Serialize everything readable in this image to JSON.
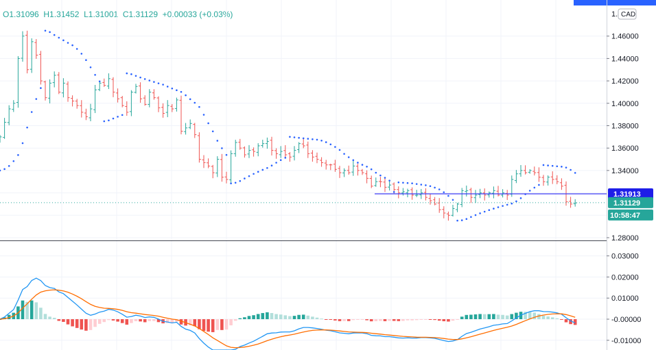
{
  "header": {
    "open": "O1.31096",
    "high": "H1.31452",
    "low": "L1.31001",
    "close": "C1.31129",
    "change": "+0.00033 (+0.03%)"
  },
  "currency_badge": "CAD",
  "colors": {
    "up": "#26a69a",
    "down": "#ef5350",
    "sar": "#2962ff",
    "hline": "#3d3df5",
    "macd": "#2196f3",
    "signal": "#ff6d00",
    "hist_up_strong": "#26a69a",
    "hist_up_weak": "#b2dfdb",
    "hist_down_strong": "#ef5350",
    "hist_down_weak": "#ffcdd2",
    "grid": "#f0f3fa",
    "axis_text": "#131722"
  },
  "chart_data": [
    {
      "type": "candlestick",
      "panel": "price",
      "y_ticks": [
        "1.46000",
        "1.44000",
        "1.42000",
        "1.40000",
        "1.38000",
        "1.36000",
        "1.34000",
        "1.28000"
      ],
      "ylim": [
        1.28,
        1.48
      ],
      "horizontal_line": {
        "value": 1.31913,
        "label": "1.31913"
      },
      "last_price": {
        "value": 1.31129,
        "label": "1.31129"
      },
      "countdown": "10:58:47",
      "close": [
        1.37,
        1.383,
        1.395,
        1.4,
        1.44,
        1.46,
        1.43,
        1.455,
        1.443,
        1.42,
        1.405,
        1.418,
        1.425,
        1.41,
        1.418,
        1.405,
        1.402,
        1.398,
        1.392,
        1.388,
        1.395,
        1.412,
        1.418,
        1.416,
        1.422,
        1.41,
        1.404,
        1.398,
        1.392,
        1.41,
        1.415,
        1.404,
        1.399,
        1.41,
        1.405,
        1.396,
        1.391,
        1.398,
        1.395,
        1.403,
        1.375,
        1.378,
        1.382,
        1.372,
        1.35,
        1.347,
        1.344,
        1.338,
        1.35,
        1.334,
        1.332,
        1.355,
        1.365,
        1.36,
        1.354,
        1.358,
        1.357,
        1.362,
        1.364,
        1.366,
        1.358,
        1.355,
        1.357,
        1.354,
        1.352,
        1.358,
        1.364,
        1.362,
        1.355,
        1.352,
        1.35,
        1.347,
        1.345,
        1.345,
        1.341,
        1.338,
        1.34,
        1.338,
        1.344,
        1.34,
        1.338,
        1.333,
        1.326,
        1.33,
        1.33,
        1.325,
        1.327,
        1.323,
        1.32,
        1.321,
        1.322,
        1.318,
        1.318,
        1.32,
        1.316,
        1.313,
        1.31,
        1.305,
        1.302,
        1.3,
        1.306,
        1.31,
        1.322,
        1.322,
        1.316,
        1.318,
        1.32,
        1.318,
        1.32,
        1.322,
        1.318,
        1.32,
        1.318,
        1.332,
        1.337,
        1.34,
        1.338,
        1.34,
        1.338,
        1.334,
        1.33,
        1.334,
        1.332,
        1.33,
        1.326,
        1.312,
        1.31,
        1.311
      ]
    },
    {
      "type": "macd",
      "panel": "indicator",
      "y_ticks": [
        "0.03000",
        "0.02000",
        "0.01000",
        "-0.00000",
        "-0.01000"
      ],
      "ylim": [
        -0.0142,
        0.0333
      ]
    }
  ]
}
